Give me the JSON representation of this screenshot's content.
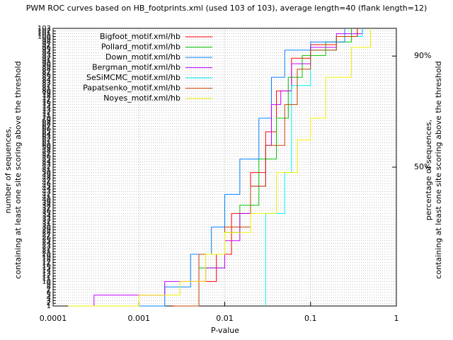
{
  "chart_data": {
    "type": "step",
    "title": "PWM ROC curves based on HB_footprints.xml (used 103 of 103), average length=40 (flank length=12)",
    "x_label": "P-value",
    "y_label": [
      "number of sequences,",
      "containing at least one site scoring above the threshold"
    ],
    "y2_label": [
      "percentage of sequences,",
      "containing at least one site scoring above the threshold"
    ],
    "log_x": true,
    "grid": true,
    "legend": "top-left",
    "xlim": [
      0.0001,
      1
    ],
    "xticks": [
      0.0001,
      0.001,
      0.01,
      0.1,
      1
    ],
    "ylim": [
      1,
      103
    ],
    "yticks": [
      1,
      2,
      3,
      4,
      5,
      6,
      7,
      8,
      9,
      10,
      11,
      12,
      13,
      14,
      15,
      16,
      17,
      18,
      19,
      20,
      21,
      22,
      23,
      24,
      25,
      26,
      27,
      28,
      29,
      30,
      31,
      32,
      33,
      34,
      35,
      36,
      37,
      38,
      39,
      40,
      41,
      42,
      43,
      44,
      45,
      46,
      47,
      48,
      49,
      50,
      51,
      52,
      53,
      54,
      55,
      56,
      57,
      58,
      59,
      60,
      61,
      62,
      63,
      64,
      65,
      66,
      67,
      68,
      69,
      70,
      71,
      72,
      73,
      74,
      75,
      76,
      77,
      78,
      79,
      80,
      81,
      82,
      83,
      84,
      85,
      86,
      87,
      88,
      89,
      90,
      91,
      92,
      93,
      94,
      95,
      96,
      97,
      98,
      99,
      100,
      101,
      102,
      103
    ],
    "y2lim": [
      0,
      100
    ],
    "y2ticks": [
      {
        "value": 50,
        "label": "50%"
      },
      {
        "value": 90,
        "label": "90%"
      }
    ],
    "series": [
      {
        "name": "Bigfoot_motif.xml/hb",
        "color": "#ff0000",
        "x": [
          0.0025,
          0.005,
          0.008,
          0.012,
          0.02,
          0.03,
          0.04,
          0.06,
          0.1,
          0.2,
          0.35
        ],
        "values": [
          1,
          10,
          20,
          35,
          50,
          65,
          80,
          92,
          97,
          100,
          103
        ]
      },
      {
        "name": "Pollard_motif.xml/hb",
        "color": "#00c000",
        "x": [
          0.0033,
          0.005,
          0.01,
          0.015,
          0.025,
          0.04,
          0.055,
          0.08,
          0.15,
          0.3
        ],
        "values": [
          1,
          15,
          28,
          38,
          55,
          70,
          85,
          93,
          98,
          103
        ]
      },
      {
        "name": "Down_motif.xml/hb",
        "color": "#0080ff",
        "x": [
          0.00065,
          0.002,
          0.004,
          0.007,
          0.01,
          0.015,
          0.025,
          0.035,
          0.05,
          0.1,
          0.25
        ],
        "values": [
          1,
          8,
          20,
          30,
          42,
          55,
          70,
          85,
          95,
          98,
          103
        ]
      },
      {
        "name": "Bergman_motif.xml/hb",
        "color": "#c000ff",
        "x": [
          0.00028,
          0.0003,
          0.002,
          0.006,
          0.01,
          0.015,
          0.02,
          0.03,
          0.035,
          0.045,
          0.06,
          0.1,
          0.2,
          0.4
        ],
        "values": [
          1,
          5,
          10,
          15,
          25,
          35,
          45,
          60,
          75,
          80,
          90,
          96,
          101,
          103
        ]
      },
      {
        "name": "SeSiMCMC_motif.xml/hb",
        "color": "#00eeee",
        "x": [
          0.03,
          0.03,
          0.05,
          0.06,
          0.06,
          0.1,
          0.2,
          0.4
        ],
        "values": [
          1,
          35,
          50,
          70,
          82,
          95,
          100,
          103
        ]
      },
      {
        "name": "Papatsenko_motif.xml/hb",
        "color": "#c04000",
        "x": [
          0.0027,
          0.005,
          0.005,
          0.01,
          0.02,
          0.03,
          0.05,
          0.07,
          0.1,
          0.2,
          0.35
        ],
        "values": [
          1,
          5,
          20,
          30,
          45,
          60,
          75,
          88,
          95,
          100,
          103
        ]
      },
      {
        "name": "Noyes_motif.xml/hb",
        "color": "#eeee00",
        "x": [
          0.00015,
          0.001,
          0.003,
          0.006,
          0.01,
          0.02,
          0.04,
          0.07,
          0.1,
          0.15,
          0.3,
          0.5
        ],
        "values": [
          1,
          5,
          10,
          20,
          28,
          35,
          50,
          62,
          70,
          85,
          96,
          103
        ]
      }
    ]
  }
}
